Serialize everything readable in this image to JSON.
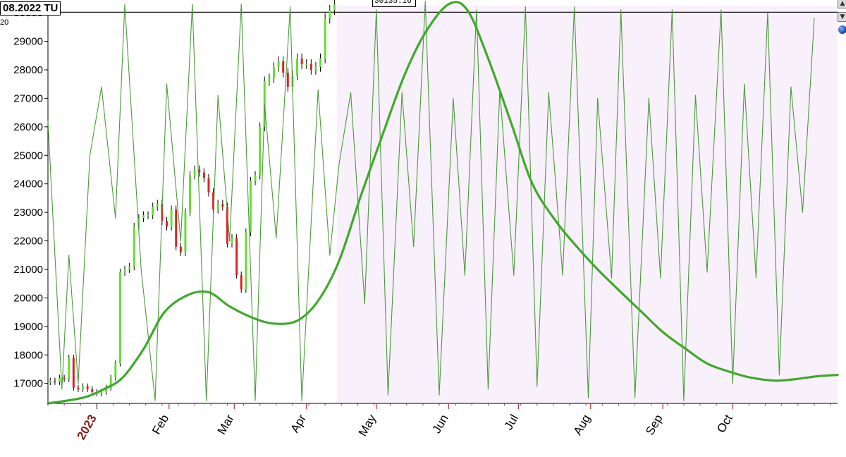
{
  "header": {
    "date_label": "08.2022 TU",
    "axis_corner_label": "20",
    "price_box_label": "30135.16"
  },
  "controls": {
    "up_button": "▲",
    "down_button": "▼",
    "globe_icon": "globe-icon"
  },
  "colors": {
    "forecast_background": "#f8f0fb",
    "cycle_line": "#4a9a3a",
    "trend_line": "#3faa2a",
    "candle_up": "#66dd33",
    "candle_down": "#e02020",
    "candle_neutral": "#000000",
    "year_label": "#8b1a1a"
  },
  "chart_data": {
    "type": "line",
    "y_axis": {
      "ticks": [
        17000,
        18000,
        19000,
        20000,
        21000,
        22000,
        23000,
        24000,
        25000,
        26000,
        27000,
        28000,
        29000,
        30000
      ],
      "ylim": [
        16300,
        30250
      ]
    },
    "x_axis": {
      "xlim": [
        "2022-12-11",
        "2023-11-15"
      ],
      "ticks": [
        {
          "date": "2023-01-01",
          "label": "2023",
          "highlight": true
        },
        {
          "date": "2023-02-01",
          "label": "Feb"
        },
        {
          "date": "2023-03-01",
          "label": "Mar"
        },
        {
          "date": "2023-04-01",
          "label": "Apr"
        },
        {
          "date": "2023-05-01",
          "label": "May"
        },
        {
          "date": "2023-06-01",
          "label": "Jun"
        },
        {
          "date": "2023-07-01",
          "label": "Jul"
        },
        {
          "date": "2023-08-01",
          "label": "Aug"
        },
        {
          "date": "2023-09-01",
          "label": "Sep"
        },
        {
          "date": "2023-10-01",
          "label": "Oct"
        }
      ]
    },
    "horizontal_line": 30020,
    "forecast_start": "2023-04-14",
    "price_series": {
      "name": "",
      "x": [
        "2022-12-12",
        "2022-12-14",
        "2022-12-16",
        "2022-12-18",
        "2022-12-20",
        "2022-12-22",
        "2022-12-24",
        "2022-12-26",
        "2022-12-28",
        "2022-12-30",
        "2023-01-01",
        "2023-01-03",
        "2023-01-05",
        "2023-01-07",
        "2023-01-09",
        "2023-01-11",
        "2023-01-13",
        "2023-01-15",
        "2023-01-17",
        "2023-01-19",
        "2023-01-21",
        "2023-01-23",
        "2023-01-25",
        "2023-01-27",
        "2023-01-29",
        "2023-01-31",
        "2023-02-02",
        "2023-02-04",
        "2023-02-06",
        "2023-02-08",
        "2023-02-10",
        "2023-02-12",
        "2023-02-14",
        "2023-02-16",
        "2023-02-18",
        "2023-02-20",
        "2023-02-22",
        "2023-02-24",
        "2023-02-26",
        "2023-02-28",
        "2023-03-02",
        "2023-03-04",
        "2023-03-06",
        "2023-03-08",
        "2023-03-10",
        "2023-03-12",
        "2023-03-14",
        "2023-03-16",
        "2023-03-18",
        "2023-03-20",
        "2023-03-22",
        "2023-03-24",
        "2023-03-26",
        "2023-03-28",
        "2023-03-30",
        "2023-04-01",
        "2023-04-03",
        "2023-04-05",
        "2023-04-07",
        "2023-04-09",
        "2023-04-11",
        "2023-04-13"
      ],
      "close": [
        17100,
        17050,
        17200,
        17150,
        17900,
        16850,
        16800,
        16900,
        16800,
        16700,
        16650,
        16700,
        16850,
        17200,
        17700,
        20900,
        21000,
        21100,
        22500,
        22800,
        22900,
        22900,
        23200,
        23300,
        22700,
        22500,
        23100,
        21800,
        21600,
        23000,
        24300,
        24500,
        24400,
        24200,
        23700,
        23100,
        23300,
        23200,
        21900,
        22100,
        20800,
        20300,
        22300,
        24100,
        24300,
        26000,
        27600,
        27700,
        28100,
        28300,
        27900,
        27400,
        27800,
        28400,
        28200,
        28200,
        28000,
        28100,
        28400,
        29800,
        30100,
        30300
      ]
    },
    "cycle_series": {
      "name": "",
      "x": [
        "2022-12-11",
        "2022-12-17",
        "2022-12-20",
        "2022-12-24",
        "2022-12-29",
        "2023-01-03",
        "2023-01-09",
        "2023-01-13",
        "2023-01-20",
        "2023-01-26",
        "2023-01-31",
        "2023-02-06",
        "2023-02-11",
        "2023-02-17",
        "2023-02-22",
        "2023-02-27",
        "2023-03-04",
        "2023-03-10",
        "2023-03-14",
        "2023-03-19",
        "2023-03-25",
        "2023-03-30",
        "2023-04-06",
        "2023-04-11",
        "2023-04-15",
        "2023-04-20",
        "2023-04-26",
        "2023-05-01",
        "2023-05-06",
        "2023-05-12",
        "2023-05-17",
        "2023-05-22",
        "2023-05-28",
        "2023-06-03",
        "2023-06-08",
        "2023-06-13",
        "2023-06-18",
        "2023-06-23",
        "2023-06-29",
        "2023-07-04",
        "2023-07-09",
        "2023-07-14",
        "2023-07-20",
        "2023-07-25",
        "2023-07-31",
        "2023-08-04",
        "2023-08-10",
        "2023-08-14",
        "2023-08-20",
        "2023-08-26",
        "2023-08-31",
        "2023-09-05",
        "2023-09-10",
        "2023-09-15",
        "2023-09-20",
        "2023-09-26",
        "2023-10-01",
        "2023-10-06",
        "2023-10-11",
        "2023-10-16",
        "2023-10-21",
        "2023-10-26",
        "2023-10-31",
        "2023-11-05"
      ],
      "y": [
        26200,
        16800,
        21500,
        17000,
        25000,
        27400,
        22800,
        30300,
        21000,
        16400,
        27500,
        22000,
        30300,
        16400,
        27100,
        22000,
        30300,
        16400,
        26800,
        22100,
        30200,
        16400,
        27300,
        21500,
        24700,
        27200,
        19800,
        30100,
        16600,
        27200,
        21800,
        30400,
        16600,
        27000,
        20800,
        30100,
        16800,
        27300,
        20800,
        30200,
        16900,
        27200,
        20800,
        30200,
        16500,
        27000,
        20700,
        30100,
        16500,
        27000,
        20700,
        30100,
        16400,
        27100,
        20900,
        30100,
        17000,
        27500,
        20700,
        30000,
        17300,
        27400,
        23000,
        29800
      ]
    },
    "trend_series": {
      "name": "",
      "x": [
        "2022-12-11",
        "2022-12-26",
        "2023-01-04",
        "2023-01-12",
        "2023-01-21",
        "2023-01-30",
        "2023-02-09",
        "2023-02-18",
        "2023-02-27",
        "2023-03-09",
        "2023-03-18",
        "2023-03-28",
        "2023-04-06",
        "2023-04-15",
        "2023-04-24",
        "2023-05-04",
        "2023-05-13",
        "2023-05-22",
        "2023-06-01",
        "2023-06-09",
        "2023-06-18",
        "2023-06-28",
        "2023-07-07",
        "2023-07-17",
        "2023-07-26",
        "2023-08-04",
        "2023-08-14",
        "2023-08-23",
        "2023-09-01",
        "2023-09-11",
        "2023-09-20",
        "2023-09-30",
        "2023-10-09",
        "2023-10-19",
        "2023-10-28",
        "2023-11-06",
        "2023-11-15"
      ],
      "y": [
        16300,
        16500,
        16800,
        17200,
        18200,
        19500,
        20100,
        20200,
        19700,
        19300,
        19100,
        19200,
        19900,
        21300,
        23500,
        25800,
        27800,
        29300,
        30300,
        30100,
        28400,
        26100,
        24000,
        22700,
        21800,
        21000,
        20200,
        19500,
        18800,
        18200,
        17700,
        17400,
        17200,
        17100,
        17150,
        17250,
        17300
      ]
    }
  }
}
